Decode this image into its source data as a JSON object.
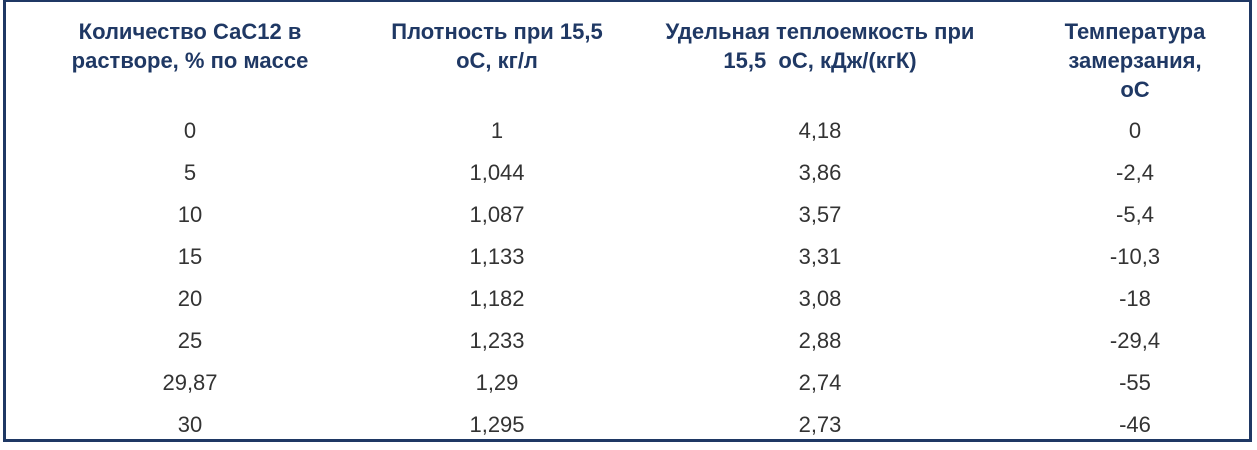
{
  "table": {
    "header": [
      [
        "Количество СаС12 в",
        "растворе, % по массе"
      ],
      [
        "Плотность при 15,5",
        "оС, кг/л"
      ],
      [
        "Удельная теплоемкость при",
        "15,5  оС, кДж/(кгК)"
      ],
      [
        "Температура",
        "замерзания,",
        "оС"
      ]
    ],
    "rows": [
      [
        "0",
        "1",
        "4,18",
        "0"
      ],
      [
        "5",
        "1,044",
        "3,86",
        "-2,4"
      ],
      [
        "10",
        "1,087",
        "3,57",
        "-5,4"
      ],
      [
        "15",
        "1,133",
        "3,31",
        "-10,3"
      ],
      [
        "20",
        "1,182",
        "3,08",
        "-18"
      ],
      [
        "25",
        "1,233",
        "2,88",
        "-29,4"
      ],
      [
        "29,87",
        "1,29",
        "2,74",
        "-55"
      ],
      [
        "30",
        "1,295",
        "2,73",
        "-46"
      ]
    ]
  }
}
